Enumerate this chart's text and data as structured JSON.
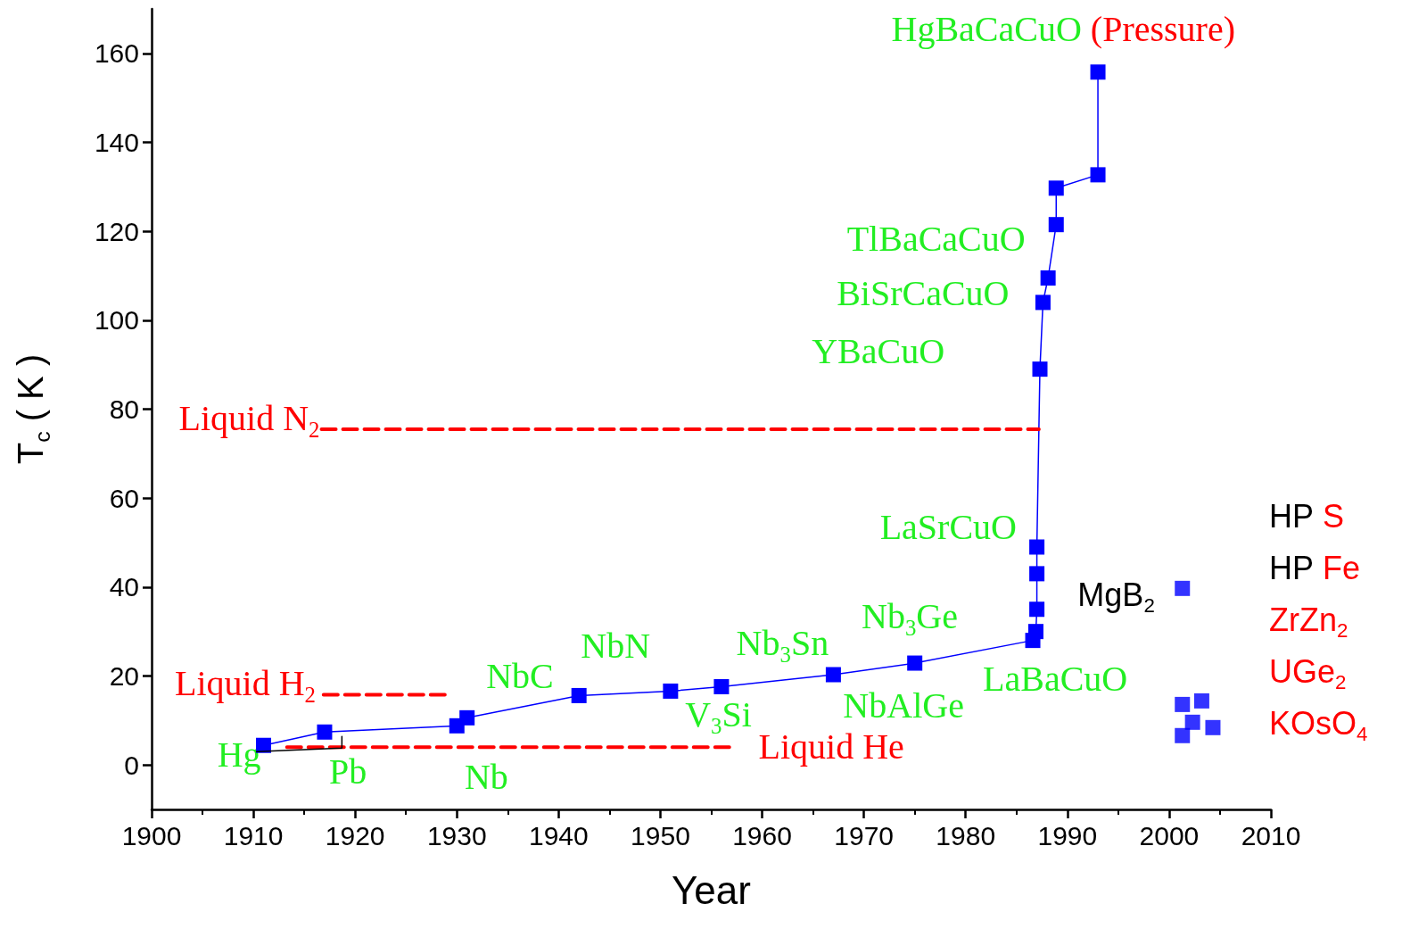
{
  "chart_data": {
    "type": "line",
    "xlabel": "Year",
    "ylabel": "T$_{c}$ ( K )",
    "xlim": [
      1900,
      2010
    ],
    "xticks": [
      1900,
      1910,
      1920,
      1930,
      1940,
      1950,
      1960,
      1970,
      1980,
      1990,
      2000,
      2010
    ],
    "ylim": [
      -10,
      170
    ],
    "yticks": [
      0,
      20,
      40,
      60,
      80,
      100,
      120,
      140,
      160
    ],
    "series": [
      {
        "color": "#ff0000",
        "line_style": "dashed",
        "marker": "none",
        "x": [
          1916.7,
          1987.2
        ],
        "values": [
          75.5,
          75.5
        ]
      },
      {
        "color": "#ff0000",
        "line_style": "dashed",
        "marker": "none",
        "x": [
          1916.9,
          1929.4
        ],
        "values": [
          15.8,
          15.8
        ]
      },
      {
        "color": "#ff0000",
        "line_style": "dashed",
        "marker": "none",
        "x": [
          1913.3,
          1957.1
        ],
        "values": [
          4,
          4
        ]
      },
      {
        "color": "#000000",
        "line_style": "solid",
        "marker": "none",
        "x": [
          1910.3,
          1918.7,
          1918.7
        ],
        "values": [
          3,
          3.8,
          6.4
        ]
      },
      {
        "color": "#0000ff",
        "line_style": "solid",
        "marker": "square",
        "x": [
          1911,
          1917,
          1930,
          1931,
          1942,
          1951,
          1956,
          1967,
          1975,
          1986.6,
          1986.9,
          1987,
          1987,
          1987,
          1987.3,
          1987.6,
          1988.1,
          1988.9,
          1988.9,
          1993,
          1993
        ],
        "values": [
          4.4,
          7.4,
          8.8,
          10.6,
          15.6,
          16.6,
          17.6,
          20.3,
          22.9,
          28,
          30,
          35,
          43,
          49,
          89,
          104,
          109.5,
          121.5,
          129.7,
          132.7,
          155.8
        ]
      },
      {
        "type": "scatter",
        "color": "#0000ff",
        "marker": "square",
        "x": [
          2001.3,
          2001.3,
          2003.2,
          2002.3,
          2001.3,
          2004.3
        ],
        "values": [
          39.7,
          13.6,
          14.4,
          9.6,
          6.6,
          8.4
        ]
      }
    ],
    "annotations": [
      "Hg",
      "Pb",
      "Nb",
      "NbC",
      "NbN",
      "V$_{3}$Si",
      "Nb$_{3}$Sn",
      "Nb$_{3}$Ge",
      "NbAlGe",
      "LaBaCuO",
      "LaSrCuO",
      "YBaCuO",
      "BiSrCaCuO",
      "TlBaCaCuO",
      "HgBaCaCuO (Pressure)",
      "Liquid N$_{2}$",
      "Liquid H$_{2}$",
      "Liquid He",
      "MgB$_{2}$",
      "HP S",
      "HP Fe",
      "ZrZn$_{2}$",
      "UGe$_{2}$",
      "KOsO$_{4}$"
    ]
  }
}
